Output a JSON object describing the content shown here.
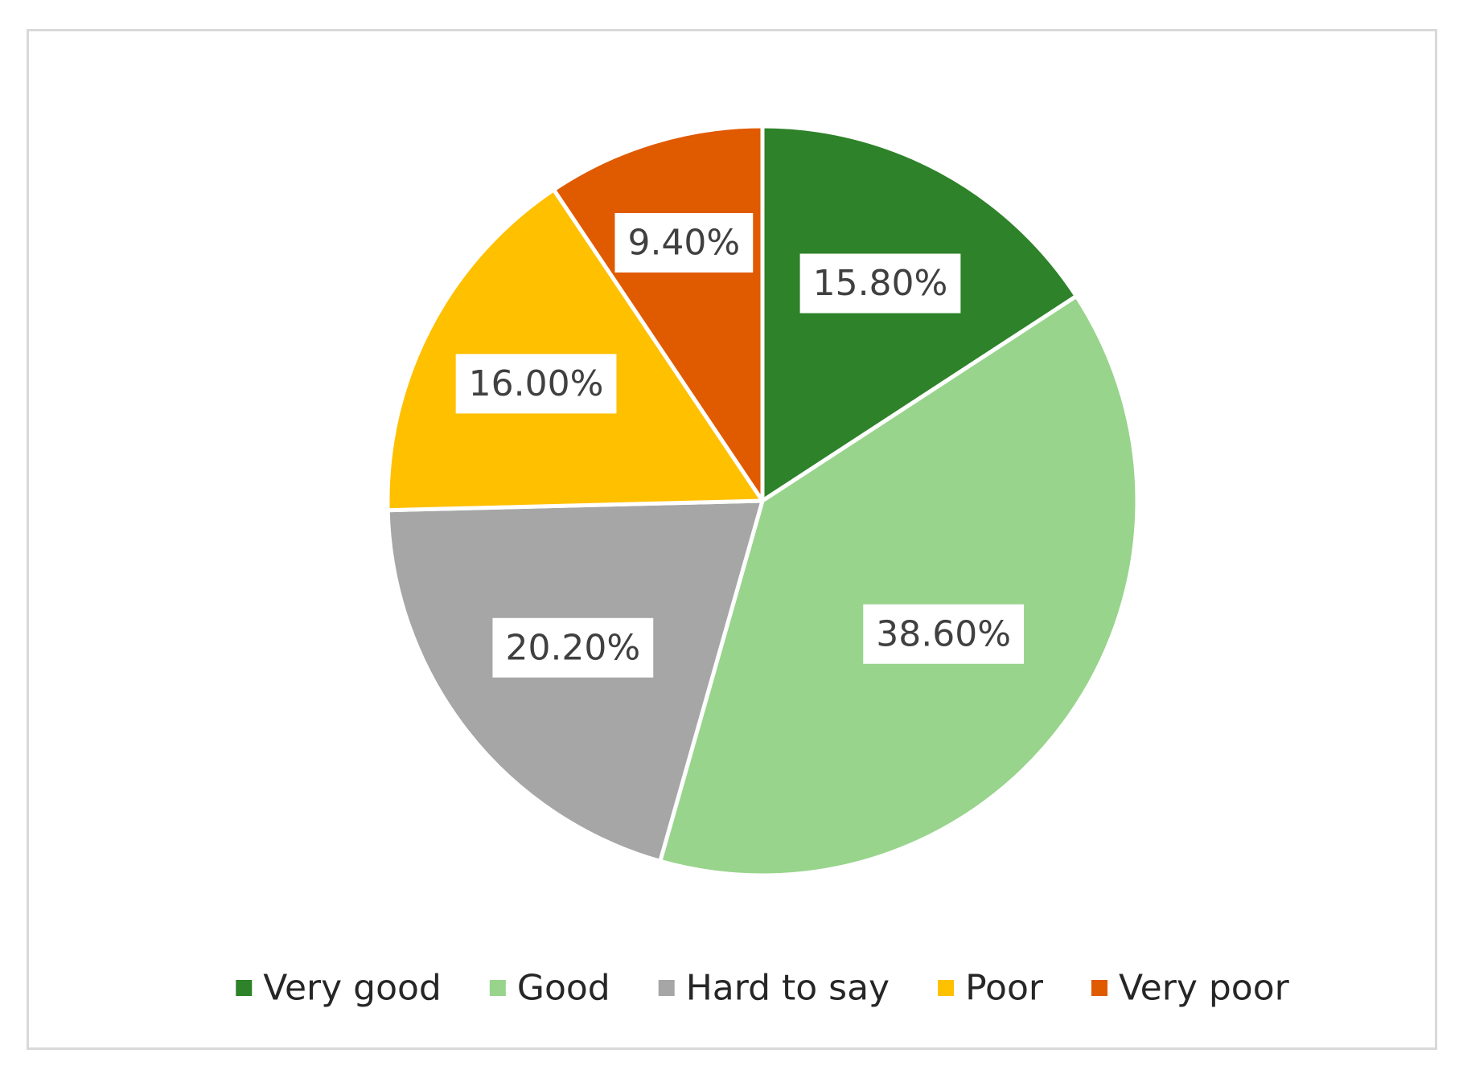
{
  "chart_data": {
    "type": "pie",
    "title": "",
    "start_angle_deg": 0,
    "direction": "clockwise",
    "legend_position": "bottom",
    "slices": [
      {
        "name": "Very good",
        "value": 15.8,
        "label": "15.80%",
        "color": "#2e8229"
      },
      {
        "name": "Good",
        "value": 38.6,
        "label": "38.60%",
        "color": "#98d48c"
      },
      {
        "name": "Hard to say",
        "value": 20.2,
        "label": "20.20%",
        "color": "#a6a6a6"
      },
      {
        "name": "Poor",
        "value": 16.0,
        "label": "16.00%",
        "color": "#ffc000"
      },
      {
        "name": "Very poor",
        "value": 9.4,
        "label": "9.40%",
        "color": "#e05a00"
      }
    ]
  }
}
